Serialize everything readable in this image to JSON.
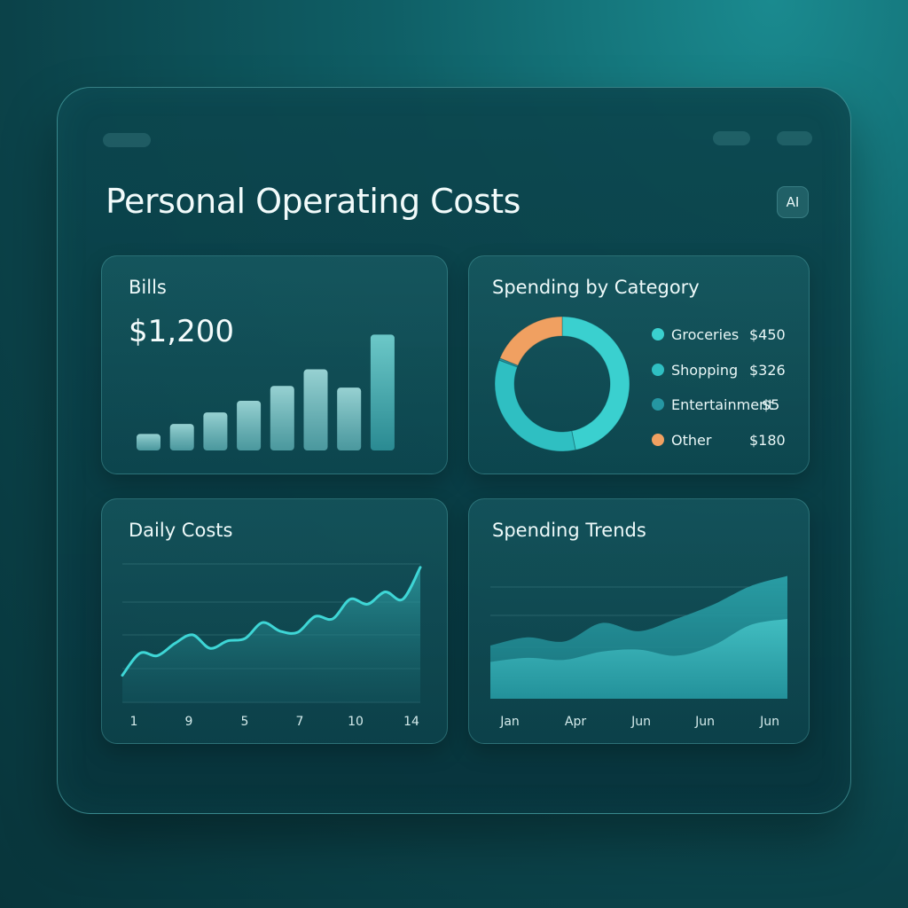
{
  "page": {
    "title": "Personal Operating Costs",
    "ai_badge": "AI"
  },
  "colors": {
    "accent": "#3ad0cf",
    "teal_mid": "#2bb3ba",
    "teal_dark": "#1f8a96",
    "orange": "#f0a061"
  },
  "bills": {
    "title": "Bills",
    "amount": "$1,200",
    "chart_data": {
      "type": "bar",
      "values": [
        20,
        32,
        46,
        60,
        78,
        98,
        76,
        140
      ],
      "ylim": [
        0,
        150
      ]
    }
  },
  "spending_by_category": {
    "title": "Spending by Category",
    "legend": [
      {
        "name": "Groceries",
        "value": "$450",
        "color": "#3ad0cf"
      },
      {
        "name": "Shopping",
        "value": "$326",
        "color": "#2fbfc2"
      },
      {
        "name": "Entertainment",
        "value": "$5",
        "color": "#2596a2"
      },
      {
        "name": "Other",
        "value": "$180",
        "color": "#f0a061"
      }
    ],
    "chart_data": {
      "type": "pie",
      "slices": [
        {
          "label": "Groceries",
          "value": 450
        },
        {
          "label": "Shopping",
          "value": 326
        },
        {
          "label": "Entertainment",
          "value": 5
        },
        {
          "label": "Other",
          "value": 180
        }
      ]
    }
  },
  "daily_costs": {
    "title": "Daily Costs",
    "chart_data": {
      "type": "area",
      "x_ticks": [
        "1",
        "9",
        "5",
        "7",
        "10",
        "14"
      ],
      "values": [
        22,
        40,
        38,
        48,
        55,
        44,
        50,
        52,
        65,
        58,
        57,
        70,
        68,
        84,
        80,
        90,
        84,
        110
      ],
      "ylim": [
        0,
        120
      ]
    }
  },
  "spending_trends": {
    "title": "Spending Trends",
    "chart_data": {
      "type": "area",
      "x_ticks": [
        "Jan",
        "Apr",
        "Jun",
        "Jun",
        "Jun"
      ],
      "series": [
        {
          "values": [
            52,
            60,
            56,
            74,
            66,
            78,
            92,
            110,
            120
          ]
        },
        {
          "values": [
            36,
            40,
            38,
            46,
            48,
            42,
            52,
            72,
            78
          ]
        }
      ],
      "ylim": [
        0,
        130
      ]
    }
  }
}
